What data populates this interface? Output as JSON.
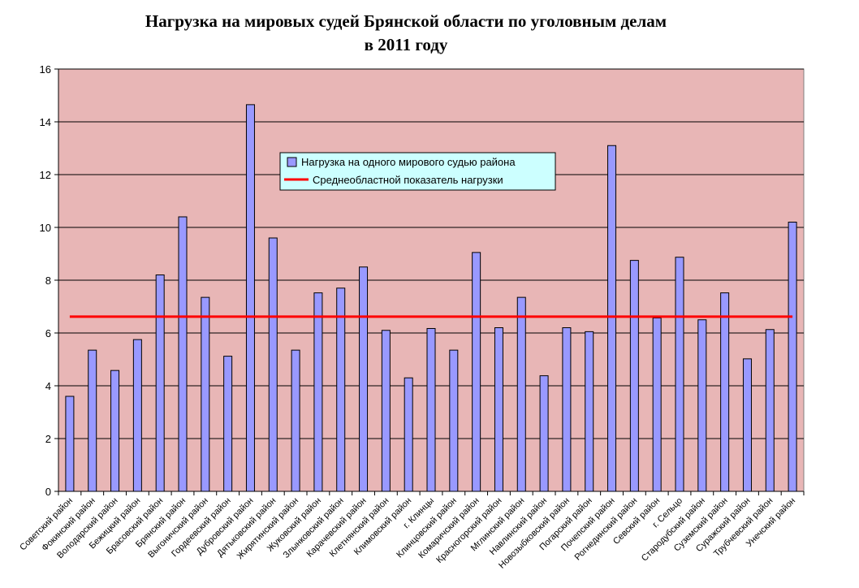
{
  "chart_data": {
    "type": "bar",
    "title_line1": "Нагрузка на мировых судей Брянской области по уголовным делам",
    "title_line2": "в 2011 году",
    "xlabel": "",
    "ylabel": "",
    "ylim": [
      0,
      16
    ],
    "yticks": [
      0,
      2,
      4,
      6,
      8,
      10,
      12,
      14,
      16
    ],
    "grid": true,
    "legend_position": "top-center",
    "colors": {
      "bar": "#9999ff",
      "bar_border": "#000000",
      "line": "#ff0000",
      "plot_bg": "#e8b6b6",
      "legend_bg": "#ccffff"
    },
    "categories": [
      "Советский район",
      "Фокинский район",
      "Володарский район",
      "Бежицкий район",
      "Брасовский район",
      "Брянский район",
      "Выгоничский район",
      "Гордеевский район",
      "Дубровский район",
      "Дятьковский район",
      "Жирятинский район",
      "Жуковский район",
      "Злынковский район",
      "Карачевский район",
      "Клетнянский район",
      "Климовский район",
      "г. Клинцы",
      "Клинцовский район",
      "Комаричский район",
      "Красногорский район",
      "Мглинский район",
      "Навлинский район",
      "Новозыбковский район",
      "Погарский район",
      "Почепский район",
      "Рогнединский район",
      "Севский район",
      "г. Сельцо",
      "Стародубский район",
      "Суземский район",
      "Суражский район",
      "Трубчевский район",
      "Унечский район"
    ],
    "series": [
      {
        "name": "Нагрузка на одного мирового судью района",
        "values": [
          3.6,
          5.35,
          4.58,
          5.75,
          8.2,
          10.4,
          7.35,
          5.12,
          14.65,
          9.6,
          5.35,
          7.52,
          7.7,
          8.5,
          6.1,
          4.3,
          6.17,
          5.35,
          9.05,
          6.2,
          7.35,
          4.38,
          6.2,
          6.05,
          13.1,
          8.75,
          6.57,
          8.87,
          6.5,
          7.52,
          5.02,
          6.13,
          10.2
        ]
      },
      {
        "name": "Среднеобластной показатель нагрузки",
        "value": 6.62
      }
    ]
  }
}
